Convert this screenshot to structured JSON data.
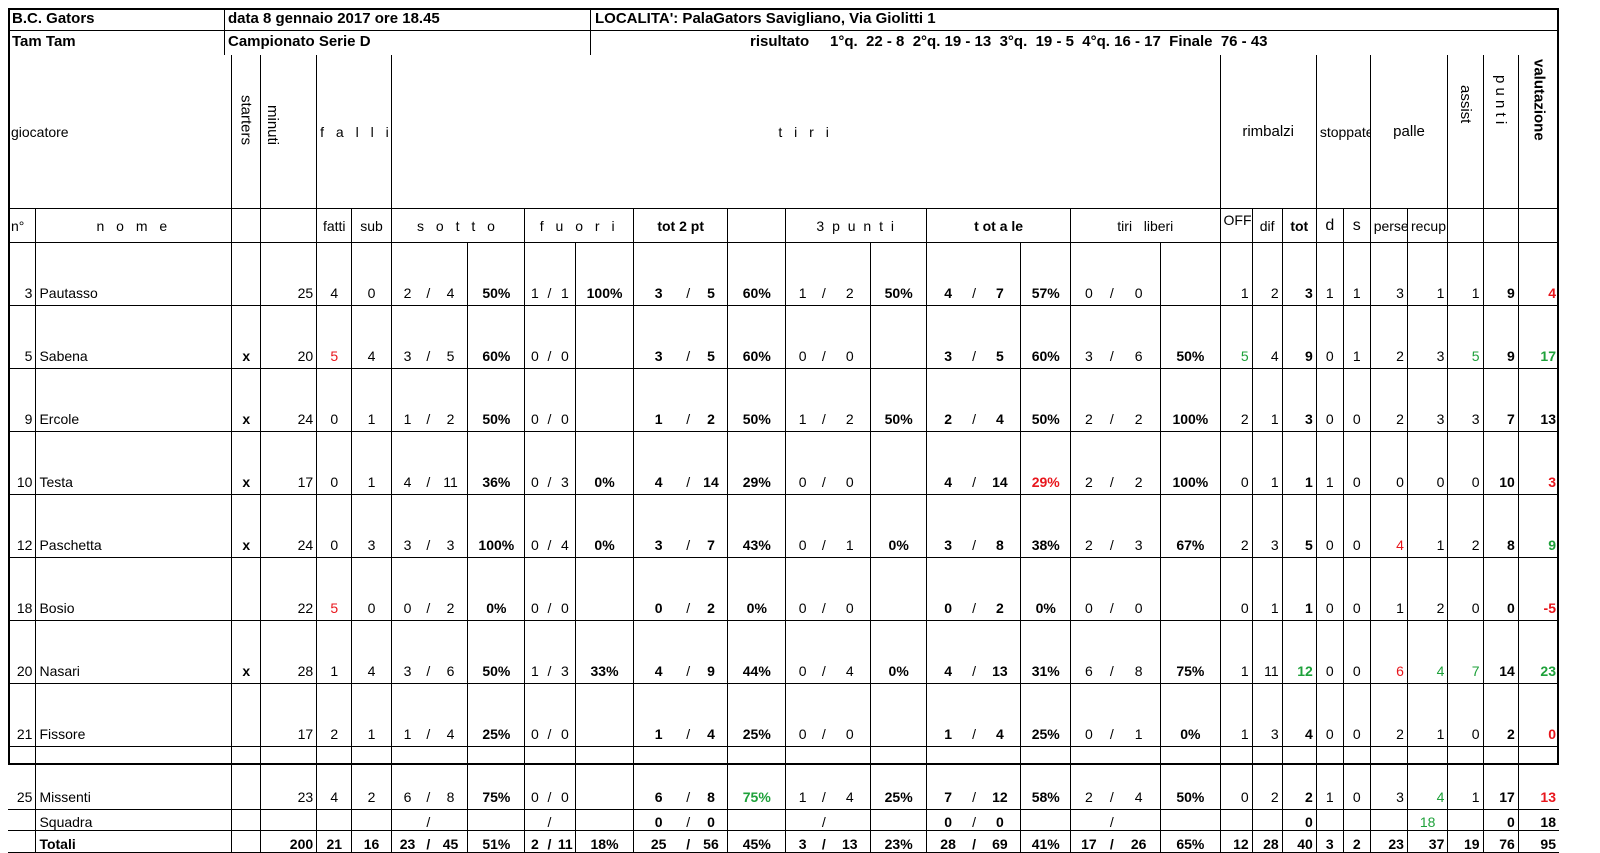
{
  "header": {
    "home_team": "B.C. Gators",
    "date": "data 8 gennaio 2017 ore 18.45",
    "location": "LOCALITA': PalaGators Savigliano, Via Giolitti 1",
    "away_team": "Tam Tam",
    "championship": "Campionato Serie D",
    "result": "risultato     1°q.  22 - 8  2°q. 19 - 13  3°q.  19 - 5  4°q. 16 - 17  Finale  76 - 43"
  },
  "groups": {
    "giocatore": "giocatore",
    "starters": "starters",
    "minuti": "minuti",
    "falli": "f a l l i",
    "tiri": "t i r i",
    "rimbalzi": "rimbalzi",
    "stoppate": "stoppate",
    "palle": "palle",
    "assist": "assist",
    "punti": "p u n t i",
    "valutazione": "valutazione"
  },
  "subheaders": {
    "n": "n°",
    "nome": "n o m e",
    "fatti": "fatti",
    "sub": "sub",
    "sotto": "s o t t o",
    "fuori": "f u o r i",
    "tot2": "tot 2 pt",
    "tre": "3 p u n t i",
    "totale": "t ot a le",
    "liberi": "tiri   liberi",
    "off": "OFF",
    "dif": "dif",
    "tot": "tot",
    "d": "d",
    "s": "s",
    "perse": "perse",
    "recup": "recup"
  },
  "players": [
    {
      "n": "3",
      "nome": "Pautasso",
      "st": "",
      "min": "25",
      "fatti": "4",
      "sub": "0",
      "sm": "2",
      "sa": "4",
      "sp": "50%",
      "fm": "1",
      "fa": "1",
      "fp": "100%",
      "t2m": "3",
      "t2a": "5",
      "t2p": "60%",
      "t3m": "1",
      "t3a": "2",
      "t3p": "50%",
      "ttm": "4",
      "tta": "7",
      "ttp": "57%",
      "ftm": "0",
      "fta": "0",
      "ftp": "",
      "off": "1",
      "dif": "2",
      "rtot": "3",
      "sd": "1",
      "ss": "1",
      "perse": "3",
      "recup": "1",
      "assist": "1",
      "punti": "9",
      "val": "4"
    },
    {
      "n": "5",
      "nome": "Sabena",
      "st": "x",
      "min": "20",
      "fatti": "5",
      "sub": "4",
      "sm": "3",
      "sa": "5",
      "sp": "60%",
      "fm": "0",
      "fa": "0",
      "fp": "",
      "t2m": "3",
      "t2a": "5",
      "t2p": "60%",
      "t3m": "0",
      "t3a": "0",
      "t3p": "",
      "ttm": "3",
      "tta": "5",
      "ttp": "60%",
      "ftm": "3",
      "fta": "6",
      "ftp": "50%",
      "off": "5",
      "dif": "4",
      "rtot": "9",
      "sd": "0",
      "ss": "1",
      "perse": "2",
      "recup": "3",
      "assist": "5",
      "punti": "9",
      "val": "17"
    },
    {
      "n": "9",
      "nome": "Ercole",
      "st": "x",
      "min": "24",
      "fatti": "0",
      "sub": "1",
      "sm": "1",
      "sa": "2",
      "sp": "50%",
      "fm": "0",
      "fa": "0",
      "fp": "",
      "t2m": "1",
      "t2a": "2",
      "t2p": "50%",
      "t3m": "1",
      "t3a": "2",
      "t3p": "50%",
      "ttm": "2",
      "tta": "4",
      "ttp": "50%",
      "ftm": "2",
      "fta": "2",
      "ftp": "100%",
      "off": "2",
      "dif": "1",
      "rtot": "3",
      "sd": "0",
      "ss": "0",
      "perse": "2",
      "recup": "3",
      "assist": "3",
      "punti": "7",
      "val": "13"
    },
    {
      "n": "10",
      "nome": "Testa",
      "st": "x",
      "min": "17",
      "fatti": "0",
      "sub": "1",
      "sm": "4",
      "sa": "11",
      "sp": "36%",
      "fm": "0",
      "fa": "3",
      "fp": "0%",
      "t2m": "4",
      "t2a": "14",
      "t2p": "29%",
      "t3m": "0",
      "t3a": "0",
      "t3p": "",
      "ttm": "4",
      "tta": "14",
      "ttp": "29%",
      "ftm": "2",
      "fta": "2",
      "ftp": "100%",
      "off": "0",
      "dif": "1",
      "rtot": "1",
      "sd": "1",
      "ss": "0",
      "perse": "0",
      "recup": "0",
      "assist": "0",
      "punti": "10",
      "val": "3"
    },
    {
      "n": "12",
      "nome": "Paschetta",
      "st": "x",
      "min": "24",
      "fatti": "0",
      "sub": "3",
      "sm": "3",
      "sa": "3",
      "sp": "100%",
      "fm": "0",
      "fa": "4",
      "fp": "0%",
      "t2m": "3",
      "t2a": "7",
      "t2p": "43%",
      "t3m": "0",
      "t3a": "1",
      "t3p": "0%",
      "ttm": "3",
      "tta": "8",
      "ttp": "38%",
      "ftm": "2",
      "fta": "3",
      "ftp": "67%",
      "off": "2",
      "dif": "3",
      "rtot": "5",
      "sd": "0",
      "ss": "0",
      "perse": "4",
      "recup": "1",
      "assist": "2",
      "punti": "8",
      "val": "9"
    },
    {
      "n": "18",
      "nome": "Bosio",
      "st": "",
      "min": "22",
      "fatti": "5",
      "sub": "0",
      "sm": "0",
      "sa": "2",
      "sp": "0%",
      "fm": "0",
      "fa": "0",
      "fp": "",
      "t2m": "0",
      "t2a": "2",
      "t2p": "0%",
      "t3m": "0",
      "t3a": "0",
      "t3p": "",
      "ttm": "0",
      "tta": "2",
      "ttp": "0%",
      "ftm": "0",
      "fta": "0",
      "ftp": "",
      "off": "0",
      "dif": "1",
      "rtot": "1",
      "sd": "0",
      "ss": "0",
      "perse": "1",
      "recup": "2",
      "assist": "0",
      "punti": "0",
      "val": "-5"
    },
    {
      "n": "20",
      "nome": "Nasari",
      "st": "x",
      "min": "28",
      "fatti": "1",
      "sub": "4",
      "sm": "3",
      "sa": "6",
      "sp": "50%",
      "fm": "1",
      "fa": "3",
      "fp": "33%",
      "t2m": "4",
      "t2a": "9",
      "t2p": "44%",
      "t3m": "0",
      "t3a": "4",
      "t3p": "0%",
      "ttm": "4",
      "tta": "13",
      "ttp": "31%",
      "ftm": "6",
      "fta": "8",
      "ftp": "75%",
      "off": "1",
      "dif": "11",
      "rtot": "12",
      "sd": "0",
      "ss": "0",
      "perse": "6",
      "recup": "4",
      "assist": "7",
      "punti": "14",
      "val": "23"
    },
    {
      "n": "21",
      "nome": "Fissore",
      "st": "",
      "min": "17",
      "fatti": "2",
      "sub": "1",
      "sm": "1",
      "sa": "4",
      "sp": "25%",
      "fm": "0",
      "fa": "0",
      "fp": "",
      "t2m": "1",
      "t2a": "4",
      "t2p": "25%",
      "t3m": "0",
      "t3a": "0",
      "t3p": "",
      "ttm": "1",
      "tta": "4",
      "ttp": "25%",
      "ftm": "0",
      "fta": "1",
      "ftp": "0%",
      "off": "1",
      "dif": "3",
      "rtot": "4",
      "sd": "0",
      "ss": "0",
      "perse": "2",
      "recup": "1",
      "assist": "0",
      "punti": "2",
      "val": "0"
    },
    {
      "n": "25",
      "nome": "Missenti",
      "st": "",
      "min": "23",
      "fatti": "4",
      "sub": "2",
      "sm": "6",
      "sa": "8",
      "sp": "75%",
      "fm": "0",
      "fa": "0",
      "fp": "",
      "t2m": "6",
      "t2a": "8",
      "t2p": "75%",
      "t3m": "1",
      "t3a": "4",
      "t3p": "25%",
      "ttm": "7",
      "tta": "12",
      "ttp": "58%",
      "ftm": "2",
      "fta": "4",
      "ftp": "50%",
      "off": "0",
      "dif": "2",
      "rtot": "2",
      "sd": "1",
      "ss": "0",
      "perse": "3",
      "recup": "4",
      "assist": "1",
      "punti": "17",
      "val": "13"
    }
  ],
  "squadra": {
    "nome": "Squadra",
    "t2m": "0",
    "t2a": "0",
    "ttm": "0",
    "tta": "0",
    "rtot": "0",
    "recup": "18",
    "punti": "0",
    "val": "18"
  },
  "totali": {
    "nome": "Totali",
    "min": "200",
    "fatti": "21",
    "sub": "16",
    "sm": "23",
    "sa": "45",
    "sp": "51%",
    "fm": "2",
    "fa": "11",
    "fp": "18%",
    "t2m": "25",
    "t2a": "56",
    "t2p": "45%",
    "t3m": "3",
    "t3a": "13",
    "t3p": "23%",
    "ttm": "28",
    "tta": "69",
    "ttp": "41%",
    "ftm": "17",
    "fta": "26",
    "ftp": "65%",
    "off": "12",
    "dif": "28",
    "rtot": "40",
    "sd": "3",
    "ss": "2",
    "perse": "23",
    "recup": "37",
    "assist": "19",
    "punti": "76",
    "val": "95"
  },
  "colors": {
    "negative": "#e8161c",
    "positive": "#1ea13a"
  }
}
